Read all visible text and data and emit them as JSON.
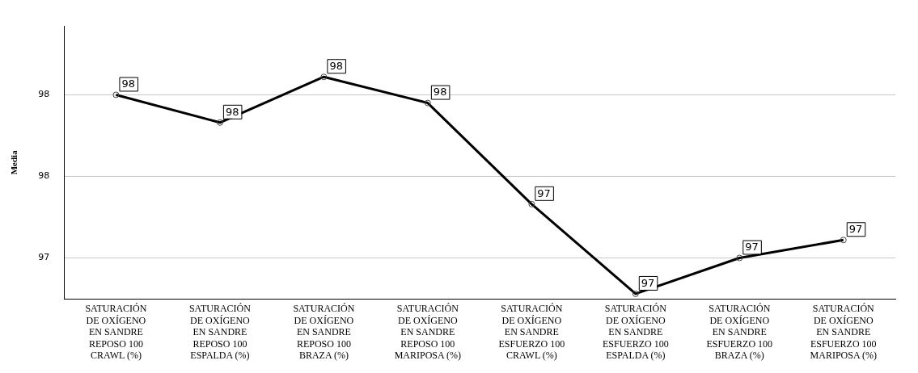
{
  "chart_data": {
    "type": "line",
    "ylabel": "Media",
    "categories": [
      "SATURACIÓN DE OXÍGENO EN SANDRE REPOSO 100 CRAWL (%)",
      "SATURACIÓN DE OXÍGENO EN SANDRE REPOSO 100 ESPALDA (%)",
      "SATURACIÓN DE OXÍGENO EN SANDRE REPOSO 100 BRAZA (%)",
      "SATURACIÓN DE OXÍGENO EN SANDRE REPOSO 100 MARIPOSA (%)",
      "SATURACIÓN DE OXÍGENO EN SANDRE ESFUERZO 100 CRAWL (%)",
      "SATURACIÓN DE OXÍGENO EN SANDRE ESFUERZO 100 ESPALDA (%)",
      "SATURACIÓN DE OXÍGENO EN SANDRE ESFUERZO 100 BRAZA (%)",
      "SATURACIÓN DE OXÍGENO EN SANDRE ESFUERZO 100 MARIPOSA (%)"
    ],
    "series": [
      {
        "color": "#000000",
        "values": [
          98.0,
          97.83,
          98.11,
          97.95,
          97.33,
          96.78,
          97.0,
          97.11
        ],
        "value_labels": [
          "98",
          "98",
          "98",
          "98",
          "97",
          "97",
          "97",
          "97"
        ]
      }
    ],
    "ylim": [
      96.75,
      98.42
    ],
    "yticks": [
      {
        "value": 97,
        "label": "97"
      },
      {
        "value": 97.5,
        "label": "98"
      },
      {
        "value": 98,
        "label": "98"
      }
    ],
    "grid": "y",
    "marker": "circle",
    "line_style": "solid",
    "legend": false
  }
}
